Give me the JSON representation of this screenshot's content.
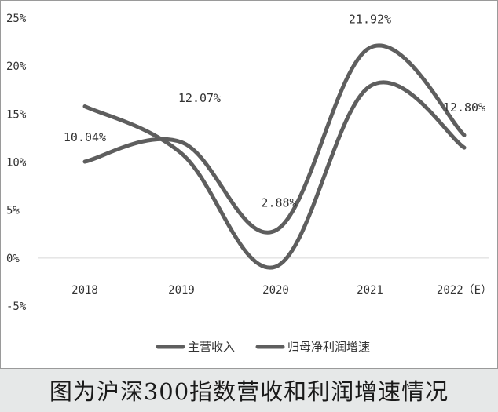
{
  "caption": "图为沪深300指数营收和利润增速情况",
  "chart_data": {
    "type": "line",
    "categories": [
      "2018",
      "2019",
      "2020",
      "2021",
      "2022（E）"
    ],
    "y_ticks": [
      "25%",
      "20%",
      "15%",
      "10%",
      "5%",
      "0%",
      "-5%"
    ],
    "ylim": [
      -5,
      25
    ],
    "grid": false,
    "legend_position": "bottom-center",
    "series": [
      {
        "name": "主营收入",
        "values": [
          10.04,
          12.07,
          2.88,
          21.92,
          12.8
        ],
        "labels": [
          "10.04%",
          "12.07%",
          "2.88%",
          "21.92%",
          "12.80%"
        ],
        "color": "#5e5e5e"
      },
      {
        "name": "归母净利润增速",
        "values": [
          15.8,
          10.9,
          -0.9,
          17.9,
          11.5
        ],
        "color": "#5e5e5e"
      }
    ]
  }
}
